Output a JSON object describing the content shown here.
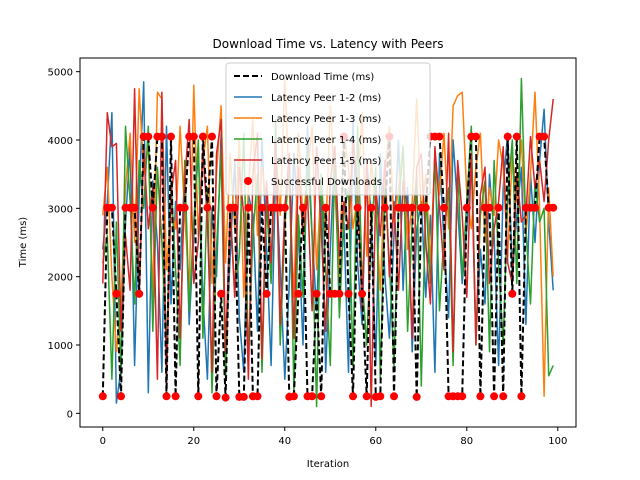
{
  "chart_data": {
    "type": "line",
    "title": "Download Time vs. Latency with Peers",
    "xlabel": "Iteration",
    "ylabel": "Time (ms)",
    "xlim": [
      -5,
      104
    ],
    "ylim": [
      -200,
      5200
    ],
    "xticks": [
      0,
      20,
      40,
      60,
      80,
      100
    ],
    "yticks": [
      0,
      1000,
      2000,
      3000,
      4000,
      5000
    ],
    "grid": false,
    "legend_position": "upper-center",
    "colors": {
      "download": "#000000",
      "peer12": "#1f77b4",
      "peer13": "#ff7f0e",
      "peer14": "#2ca02c",
      "peer15": "#d62728",
      "success": "#ff0000"
    },
    "x": [
      0,
      1,
      2,
      3,
      4,
      5,
      6,
      7,
      8,
      9,
      10,
      11,
      12,
      13,
      14,
      15,
      16,
      17,
      18,
      19,
      20,
      21,
      22,
      23,
      24,
      25,
      26,
      27,
      28,
      29,
      30,
      31,
      32,
      33,
      34,
      35,
      36,
      37,
      38,
      39,
      40,
      41,
      42,
      43,
      44,
      45,
      46,
      47,
      48,
      49,
      50,
      51,
      52,
      53,
      54,
      55,
      56,
      57,
      58,
      59,
      60,
      61,
      62,
      63,
      64,
      65,
      66,
      67,
      68,
      69,
      70,
      71,
      72,
      73,
      74,
      75,
      76,
      77,
      78,
      79,
      80,
      81,
      82,
      83,
      84,
      85,
      86,
      87,
      88,
      89,
      90,
      91,
      92,
      93,
      94,
      95,
      96,
      97,
      98,
      99
    ],
    "series": [
      {
        "name": "Download Time (ms)",
        "style": "dashed",
        "values": [
          250,
          3010,
          3010,
          1750,
          250,
          3010,
          3010,
          3010,
          1750,
          4050,
          4050,
          3010,
          4050,
          4050,
          250,
          4050,
          250,
          3010,
          3010,
          4050,
          4050,
          250,
          4050,
          3010,
          4050,
          250,
          1750,
          230,
          3010,
          3010,
          240,
          240,
          3010,
          250,
          250,
          3010,
          1750,
          3010,
          3010,
          3010,
          3010,
          240,
          250,
          1750,
          3010,
          250,
          250,
          1750,
          250,
          3010,
          1750,
          1750,
          1750,
          4050,
          1750,
          250,
          3010,
          1750,
          250,
          3010,
          240,
          250,
          3010,
          4050,
          250,
          3010,
          3010,
          3010,
          3010,
          240,
          3010,
          3010,
          4050,
          4050,
          4050,
          3010,
          250,
          250,
          250,
          250,
          3010,
          4050,
          4050,
          250,
          3010,
          3010,
          250,
          3010,
          250,
          4050,
          1750,
          4050,
          250,
          3010,
          3010,
          3010,
          4050,
          4050,
          3010,
          3010
        ]
      },
      {
        "name": "Latency Peer 1-2 (ms)",
        "values": [
          2400,
          3100,
          4400,
          150,
          650,
          2800,
          3900,
          700,
          3200,
          4850,
          300,
          3400,
          2500,
          600,
          4200,
          1600,
          3100,
          2100,
          3500,
          1300,
          2600,
          3900,
          1700,
          500,
          3000,
          2000,
          4100,
          850,
          2300,
          3700,
          1400,
          600,
          3200,
          2900,
          1200,
          4000,
          2400,
          700,
          3600,
          2100,
          500,
          1900,
          3800,
          2700,
          1000,
          4200,
          2600,
          1500,
          3300,
          600,
          2400,
          3900,
          1700,
          2800,
          600,
          4300,
          2200,
          1300,
          3700,
          2900,
          700,
          3800,
          2000,
          1100,
          2600,
          4000,
          1800,
          3300,
          900,
          2700,
          3100,
          1700,
          2900,
          600,
          3800,
          2500,
          1400,
          4000,
          3000,
          1900,
          2700,
          3800,
          1100,
          2400,
          1600,
          3500,
          2600,
          700,
          3300,
          4100,
          2000,
          2900,
          3600,
          1300,
          3500,
          2500,
          3700,
          4450,
          2800,
          1800
        ]
      },
      {
        "name": "Latency Peer 1-3 (ms)",
        "values": [
          2900,
          3600,
          2000,
          900,
          1600,
          3300,
          4100,
          2500,
          4750,
          3500,
          3900,
          1700,
          4700,
          4600,
          2100,
          3000,
          2700,
          4200,
          2900,
          1800,
          4800,
          2600,
          3700,
          4200,
          1900,
          3500,
          4500,
          2200,
          3800,
          2700,
          4000,
          1700,
          3300,
          4300,
          2600,
          3600,
          3100,
          2000,
          3900,
          2900,
          4900,
          3300,
          1700,
          4100,
          2800,
          3500,
          4200,
          2100,
          3400,
          2600,
          4500,
          3300,
          2000,
          4100,
          3600,
          2700,
          3200,
          4400,
          2300,
          3700,
          3000,
          1800,
          3500,
          4200,
          2800,
          3300,
          3900,
          2400,
          3100,
          4600,
          2900,
          3500,
          2200,
          3800,
          3200,
          4100,
          2700,
          4500,
          4650,
          4700,
          3200,
          2700,
          3600,
          4100,
          2500,
          3300,
          2900,
          4000,
          3600,
          2300,
          3800,
          3100,
          4000,
          2600,
          3500,
          4700,
          3000,
          250,
          3300,
          2000
        ]
      },
      {
        "name": "Latency Peer 1-4 (ms)",
        "values": [
          2200,
          2600,
          500,
          2800,
          550,
          4200,
          3100,
          1600,
          3700,
          3000,
          4200,
          1200,
          3600,
          2500,
          900,
          3400,
          2100,
          700,
          3700,
          1500,
          2800,
          4000,
          1100,
          3300,
          300,
          2400,
          3800,
          500,
          3000,
          1800,
          2300,
          4100,
          800,
          2600,
          3500,
          600,
          3100,
          1900,
          4300,
          1000,
          2700,
          3700,
          300,
          2900,
          1700,
          3800,
          2600,
          100,
          3500,
          2100,
          700,
          3800,
          1400,
          2900,
          3300,
          700,
          4200,
          2000,
          1000,
          2600,
          3600,
          500,
          3300,
          2200,
          700,
          3000,
          3900,
          1200,
          2800,
          3500,
          400,
          3200,
          1900,
          3800,
          1500,
          2600,
          3300,
          700,
          3600,
          2000,
          3100,
          4200,
          1000,
          2900,
          3400,
          900,
          3700,
          2200,
          1000,
          3200,
          4000,
          1900,
          4900,
          2700,
          1600,
          3400,
          2800,
          3000,
          550,
          700
        ]
      },
      {
        "name": "Latency Peer 1-5 (ms)",
        "values": [
          1900,
          4400,
          3900,
          3950,
          1200,
          2600,
          1800,
          4750,
          1700,
          3900,
          2700,
          3300,
          500,
          4700,
          400,
          3200,
          3700,
          1100,
          3400,
          4300,
          1900,
          2500,
          3900,
          2800,
          600,
          3800,
          4300,
          900,
          3000,
          1700,
          3600,
          2900,
          500,
          3500,
          4100,
          800,
          3400,
          2200,
          4000,
          1300,
          3000,
          3800,
          1100,
          3600,
          2600,
          3200,
          1500,
          3900,
          2700,
          1200,
          3400,
          3900,
          2300,
          3100,
          2700,
          4000,
          3300,
          1500,
          3700,
          100,
          3300,
          2600,
          3700,
          2000,
          3100,
          1800,
          3400,
          3000,
          1100,
          3600,
          3800,
          2500,
          1600,
          3900,
          3000,
          2100,
          4100,
          900,
          3700,
          2900,
          1700,
          3800,
          1000,
          3200,
          3600,
          1900,
          2700,
          3100,
          3900,
          2200,
          1900,
          3500,
          2800,
          2900,
          4050,
          3300,
          3700,
          3100,
          4000,
          4600
        ]
      },
      {
        "name": "Successful Downloads",
        "style": "markers",
        "values": [
          250,
          3010,
          3010,
          1750,
          250,
          3010,
          3010,
          3010,
          1750,
          4050,
          4050,
          3010,
          4050,
          4050,
          250,
          4050,
          250,
          3010,
          3010,
          4050,
          4050,
          250,
          4050,
          3010,
          4050,
          250,
          1750,
          230,
          3010,
          3010,
          240,
          240,
          3010,
          250,
          250,
          3010,
          1750,
          3010,
          3010,
          3010,
          3010,
          240,
          250,
          1750,
          3010,
          250,
          250,
          1750,
          250,
          3010,
          1750,
          1750,
          1750,
          4050,
          1750,
          250,
          3010,
          1750,
          250,
          3010,
          240,
          250,
          3010,
          4050,
          250,
          3010,
          3010,
          3010,
          3010,
          240,
          3010,
          3010,
          4050,
          4050,
          4050,
          3010,
          250,
          250,
          250,
          250,
          3010,
          4050,
          4050,
          250,
          3010,
          3010,
          250,
          3010,
          250,
          4050,
          1750,
          4050,
          250,
          3010,
          3010,
          3010,
          4050,
          4050,
          3010,
          3010
        ]
      }
    ]
  }
}
